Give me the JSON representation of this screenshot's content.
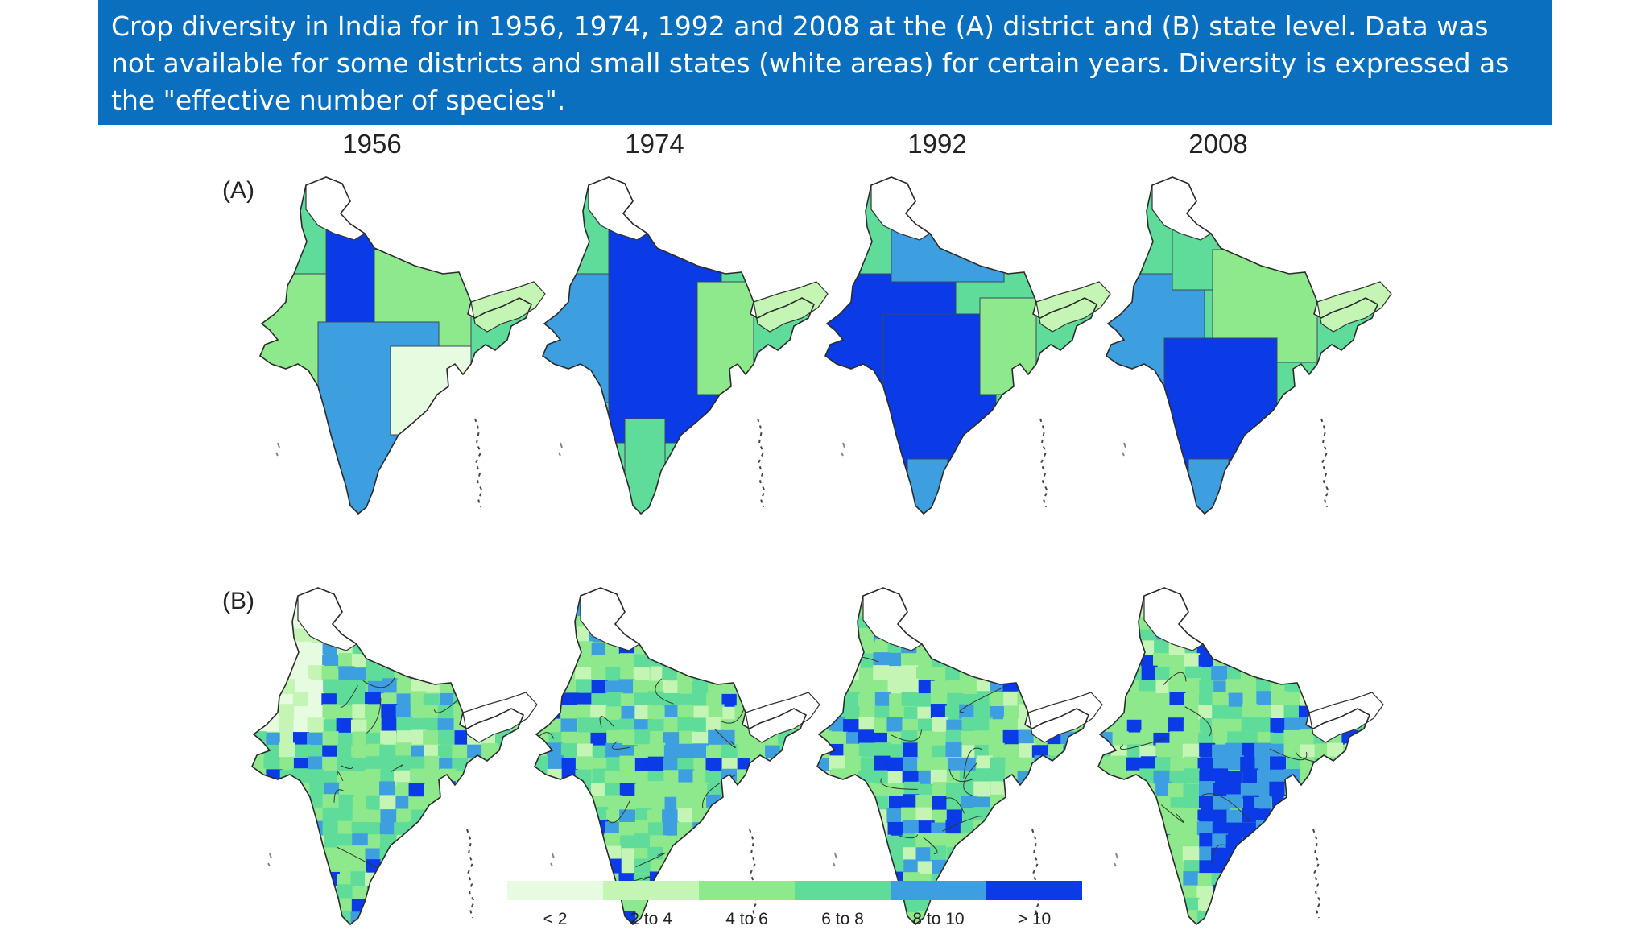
{
  "caption": "Crop diversity in India for in 1956, 1974, 1992 and 2008 at the (A) district and (B) state level. Data was not available for some districts and small states (white areas) for certain years. Diversity is expressed as the \"effective number of species\".",
  "years": [
    "1956",
    "1974",
    "1992",
    "2008"
  ],
  "rows": [
    "(A)",
    "(B)"
  ],
  "legend": {
    "labels": [
      "< 2",
      "2 to 4",
      "4 to 6",
      "6 to 8",
      "8 to 10",
      "> 10"
    ],
    "colors": [
      "#e6fbe0",
      "#c4f5b4",
      "#8ee88c",
      "#5fdc9a",
      "#3d9ee0",
      "#0a3be6"
    ]
  }
}
